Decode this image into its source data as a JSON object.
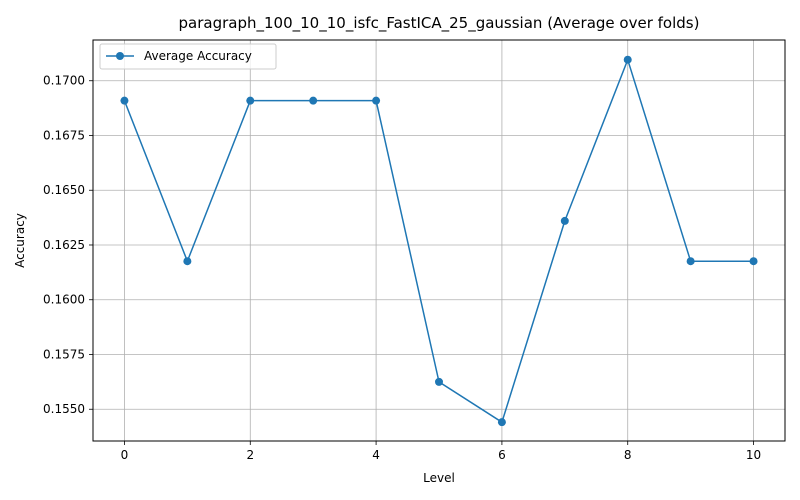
{
  "chart_data": {
    "type": "line",
    "title": "paragraph_100_10_10_isfc_FastICA_25_gaussian (Average over folds)",
    "xlabel": "Level",
    "ylabel": "Accuracy",
    "x": [
      0,
      1,
      2,
      3,
      4,
      5,
      6,
      7,
      8,
      9,
      10
    ],
    "series": [
      {
        "name": "Average Accuracy",
        "values": [
          0.16909,
          0.16176,
          0.16909,
          0.16909,
          0.16909,
          0.15625,
          0.15441,
          0.1636,
          0.17096,
          0.16176,
          0.16176
        ],
        "color": "#1f77b4",
        "marker": "circle"
      }
    ],
    "xlim": [
      -0.5,
      10.5
    ],
    "ylim": [
      0.15355,
      0.17186
    ],
    "xticks": [
      0,
      2,
      4,
      6,
      8,
      10
    ],
    "yticks": [
      0.155,
      0.1575,
      0.16,
      0.1625,
      0.165,
      0.1675,
      0.17
    ],
    "ytick_labels": [
      "0.1550",
      "0.1575",
      "0.1600",
      "0.1625",
      "0.1650",
      "0.1675",
      "0.1700"
    ],
    "grid": true,
    "legend_position": "top-left"
  }
}
